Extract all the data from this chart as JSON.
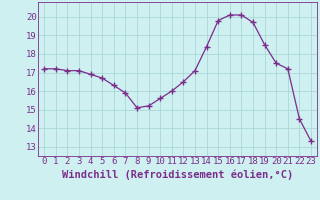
{
  "x": [
    0,
    1,
    2,
    3,
    4,
    5,
    6,
    7,
    8,
    9,
    10,
    11,
    12,
    13,
    14,
    15,
    16,
    17,
    18,
    19,
    20,
    21,
    22,
    23
  ],
  "y": [
    17.2,
    17.2,
    17.1,
    17.1,
    16.9,
    16.7,
    16.3,
    15.9,
    15.1,
    15.2,
    15.6,
    16.0,
    16.5,
    17.1,
    18.4,
    19.8,
    20.1,
    20.1,
    19.7,
    18.5,
    17.5,
    17.2,
    14.5,
    13.3
  ],
  "line_color": "#7b2d8b",
  "marker": "+",
  "marker_size": 4,
  "xlabel": "Windchill (Refroidissement éolien,°C)",
  "ylabel_ticks": [
    13,
    14,
    15,
    16,
    17,
    18,
    19,
    20
  ],
  "ylim": [
    12.5,
    20.8
  ],
  "xlim": [
    -0.5,
    23.5
  ],
  "bg_color": "#cef0f0",
  "grid_color": "#aad8d8",
  "tick_fontsize": 6.5,
  "xlabel_fontsize": 7.5
}
